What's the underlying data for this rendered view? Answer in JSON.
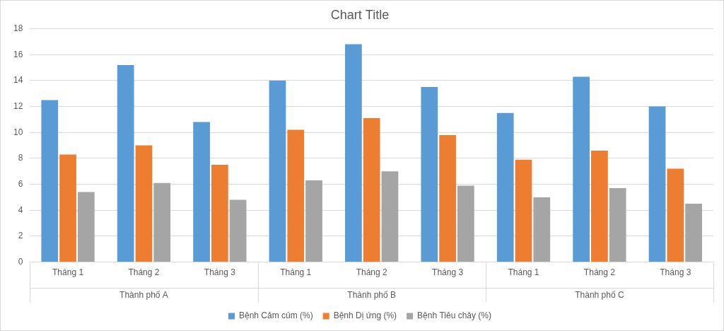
{
  "chart_data": {
    "type": "bar",
    "title": "Chart Title",
    "categories": [
      "Tháng 1",
      "Tháng 2",
      "Tháng 3",
      "Tháng 1",
      "Tháng 2",
      "Tháng 3",
      "Tháng 1",
      "Tháng 2",
      "Tháng 3"
    ],
    "groups": [
      "Thành phố A",
      "Thành phố B",
      "Thành phố C"
    ],
    "series": [
      {
        "name": "Bệnh Cảm cúm (%)",
        "color": "#5b9bd5",
        "values": [
          12.5,
          15.2,
          10.8,
          14.0,
          16.8,
          13.5,
          11.5,
          14.3,
          12.0
        ]
      },
      {
        "name": "Bệnh Dị ứng (%)",
        "color": "#ed7d31",
        "values": [
          8.3,
          9.0,
          7.5,
          10.2,
          11.1,
          9.8,
          7.9,
          8.6,
          7.2
        ]
      },
      {
        "name": "Bệnh Tiêu chảy (%)",
        "color": "#a5a5a5",
        "values": [
          5.4,
          6.1,
          4.8,
          6.3,
          7.0,
          5.9,
          5.0,
          5.7,
          4.5
        ]
      }
    ],
    "ylim": [
      0,
      18
    ],
    "yticks": [
      0,
      2,
      4,
      6,
      8,
      10,
      12,
      14,
      16,
      18
    ],
    "grid": true,
    "legend": "bottom"
  }
}
